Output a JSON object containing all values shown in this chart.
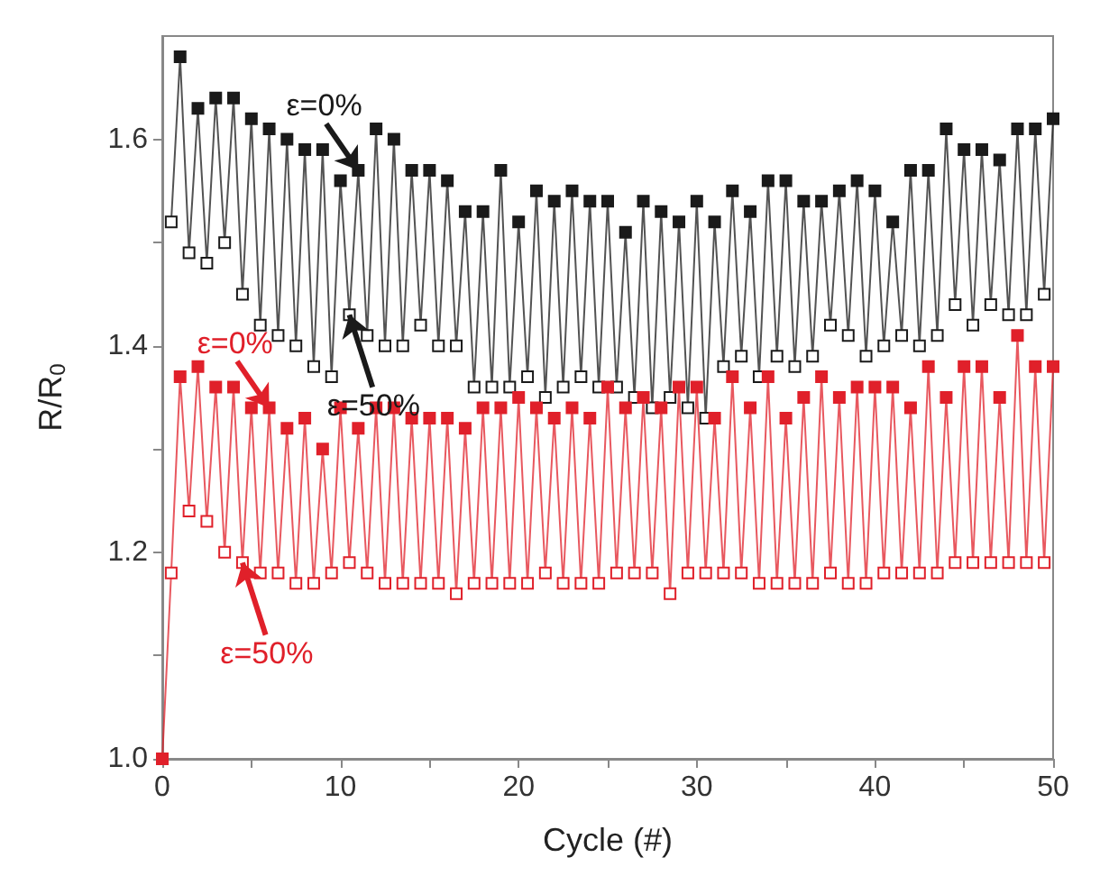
{
  "chart_data": {
    "type": "line",
    "xlabel": "Cycle (#)",
    "ylabel": "R/R$_{0}$",
    "marker": "square",
    "grid": false,
    "xlim": [
      0,
      50
    ],
    "ylim": [
      1.0,
      1.7
    ],
    "xticks": [
      0,
      {
        "value": 5,
        "label": null
      },
      10,
      {
        "value": 15,
        "label": null
      },
      20,
      {
        "value": 25,
        "label": null
      },
      30,
      {
        "value": 35,
        "label": null
      },
      40,
      {
        "value": 45,
        "label": null
      },
      50
    ],
    "yticks": [
      {
        "value": 1.0,
        "label": "1.0"
      },
      {
        "value": 1.1,
        "label": null
      },
      {
        "value": 1.2,
        "label": "1.2"
      },
      {
        "value": 1.3,
        "label": null
      },
      {
        "value": 1.4,
        "label": "1.4"
      },
      {
        "value": 1.5,
        "label": null
      },
      {
        "value": 1.6,
        "label": "1.6"
      }
    ],
    "series": [
      {
        "color": "#1a1a1a",
        "x": [
          0.5,
          1,
          1.5,
          2,
          2.5,
          3,
          3.5,
          4,
          4.5,
          5,
          5.5,
          6,
          6.5,
          7,
          7.5,
          8,
          8.5,
          9,
          9.5,
          10,
          10.5,
          11,
          11.5,
          12,
          12.5,
          13,
          13.5,
          14,
          14.5,
          15,
          15.5,
          16,
          16.5,
          17,
          17.5,
          18,
          18.5,
          19,
          19.5,
          20,
          20.5,
          21,
          21.5,
          22,
          22.5,
          23,
          23.5,
          24,
          24.5,
          25,
          25.5,
          26,
          26.5,
          27,
          27.5,
          28,
          28.5,
          29,
          29.5,
          30,
          30.5,
          31,
          31.5,
          32,
          32.5,
          33,
          33.5,
          34,
          34.5,
          35,
          35.5,
          36,
          36.5,
          37,
          37.5,
          38,
          38.5,
          39,
          39.5,
          40,
          40.5,
          41,
          41.5,
          42,
          42.5,
          43,
          43.5,
          44,
          44.5,
          45,
          45.5,
          46,
          46.5,
          47,
          47.5,
          48,
          48.5,
          49,
          49.5,
          50
        ],
        "values": [
          1.52,
          1.68,
          1.49,
          1.63,
          1.48,
          1.64,
          1.5,
          1.64,
          1.45,
          1.62,
          1.42,
          1.61,
          1.41,
          1.6,
          1.4,
          1.59,
          1.38,
          1.59,
          1.37,
          1.56,
          1.43,
          1.57,
          1.41,
          1.61,
          1.4,
          1.6,
          1.4,
          1.57,
          1.42,
          1.57,
          1.4,
          1.56,
          1.4,
          1.53,
          1.36,
          1.53,
          1.36,
          1.57,
          1.36,
          1.52,
          1.37,
          1.55,
          1.35,
          1.54,
          1.36,
          1.55,
          1.37,
          1.54,
          1.36,
          1.54,
          1.36,
          1.51,
          1.35,
          1.54,
          1.34,
          1.53,
          1.35,
          1.52,
          1.34,
          1.54,
          1.33,
          1.52,
          1.38,
          1.55,
          1.39,
          1.53,
          1.37,
          1.56,
          1.39,
          1.56,
          1.38,
          1.54,
          1.39,
          1.54,
          1.42,
          1.55,
          1.41,
          1.56,
          1.39,
          1.55,
          1.4,
          1.52,
          1.41,
          1.57,
          1.4,
          1.57,
          1.41,
          1.61,
          1.44,
          1.59,
          1.42,
          1.59,
          1.44,
          1.58,
          1.43,
          1.61,
          1.43,
          1.61,
          1.45,
          1.62
        ]
      },
      {
        "color": "#e0202a",
        "x": [
          0,
          0.5,
          1,
          1.5,
          2,
          2.5,
          3,
          3.5,
          4,
          4.5,
          5,
          5.5,
          6,
          6.5,
          7,
          7.5,
          8,
          8.5,
          9,
          9.5,
          10,
          10.5,
          11,
          11.5,
          12,
          12.5,
          13,
          13.5,
          14,
          14.5,
          15,
          15.5,
          16,
          16.5,
          17,
          17.5,
          18,
          18.5,
          19,
          19.5,
          20,
          20.5,
          21,
          21.5,
          22,
          22.5,
          23,
          23.5,
          24,
          24.5,
          25,
          25.5,
          26,
          26.5,
          27,
          27.5,
          28,
          28.5,
          29,
          29.5,
          30,
          30.5,
          31,
          31.5,
          32,
          32.5,
          33,
          33.5,
          34,
          34.5,
          35,
          35.5,
          36,
          36.5,
          37,
          37.5,
          38,
          38.5,
          39,
          39.5,
          40,
          40.5,
          41,
          41.5,
          42,
          42.5,
          43,
          43.5,
          44,
          44.5,
          45,
          45.5,
          46,
          46.5,
          47,
          47.5,
          48,
          48.5,
          49,
          49.5,
          50
        ],
        "values": [
          1.0,
          1.18,
          1.37,
          1.24,
          1.38,
          1.23,
          1.36,
          1.2,
          1.36,
          1.19,
          1.34,
          1.18,
          1.34,
          1.18,
          1.32,
          1.17,
          1.33,
          1.17,
          1.3,
          1.18,
          1.34,
          1.19,
          1.32,
          1.18,
          1.34,
          1.17,
          1.34,
          1.17,
          1.33,
          1.17,
          1.33,
          1.17,
          1.33,
          1.16,
          1.32,
          1.17,
          1.34,
          1.17,
          1.34,
          1.17,
          1.35,
          1.17,
          1.34,
          1.18,
          1.33,
          1.17,
          1.34,
          1.17,
          1.33,
          1.17,
          1.36,
          1.18,
          1.34,
          1.18,
          1.35,
          1.18,
          1.34,
          1.16,
          1.36,
          1.18,
          1.36,
          1.18,
          1.33,
          1.18,
          1.37,
          1.18,
          1.34,
          1.17,
          1.37,
          1.17,
          1.33,
          1.17,
          1.35,
          1.17,
          1.37,
          1.18,
          1.35,
          1.17,
          1.36,
          1.17,
          1.36,
          1.18,
          1.36,
          1.18,
          1.34,
          1.18,
          1.38,
          1.18,
          1.35,
          1.19,
          1.38,
          1.19,
          1.38,
          1.19,
          1.35,
          1.19,
          1.41,
          1.19,
          1.38,
          1.19,
          1.38
        ]
      }
    ],
    "annotations": [
      {
        "text": "ε=0%",
        "x": 11,
        "y": 1.57
      },
      {
        "text": "ε=50%",
        "x": 10.5,
        "y": 1.43
      },
      {
        "text": "ε=0%",
        "x": 6,
        "y": 1.34
      },
      {
        "text": "ε=50%",
        "x": 4.5,
        "y": 1.19
      }
    ]
  }
}
